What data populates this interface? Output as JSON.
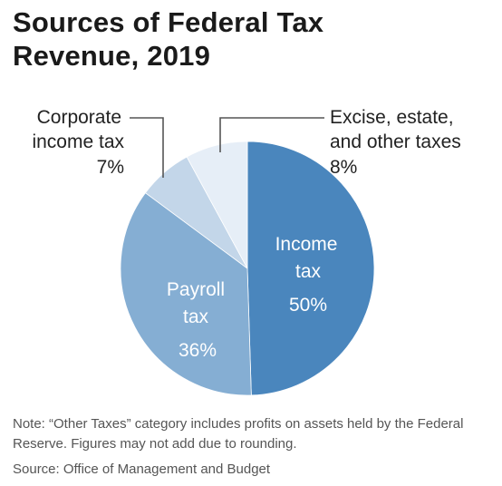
{
  "title": {
    "line1": "Sources of Federal Tax",
    "line2": "Revenue, 2019"
  },
  "chart_data": {
    "type": "pie",
    "title": "Sources of Federal Tax Revenue, 2019",
    "categories": [
      "Income tax",
      "Payroll tax",
      "Corporate income tax",
      "Excise, estate, and other taxes"
    ],
    "values": [
      50,
      36,
      7,
      8
    ],
    "labels": [
      {
        "lines": [
          "Income",
          "tax"
        ],
        "pct": "50%"
      },
      {
        "lines": [
          "Payroll",
          "tax"
        ],
        "pct": "36%"
      },
      {
        "lines": [
          "Corporate",
          "income tax"
        ],
        "pct": "7%"
      },
      {
        "lines": [
          "Excise, estate,",
          "and other taxes"
        ],
        "pct": "8%"
      }
    ],
    "colors": [
      "#4a86bd",
      "#85aed3",
      "#c3d6e9",
      "#e6eef7"
    ],
    "start": "12 o'clock",
    "direction": "clockwise",
    "legend": "none"
  },
  "note": "Note: “Other Taxes” category includes profits on assets held by the Federal Reserve. Figures may not add due to rounding.",
  "source": "Source: Office of Management and Budget"
}
